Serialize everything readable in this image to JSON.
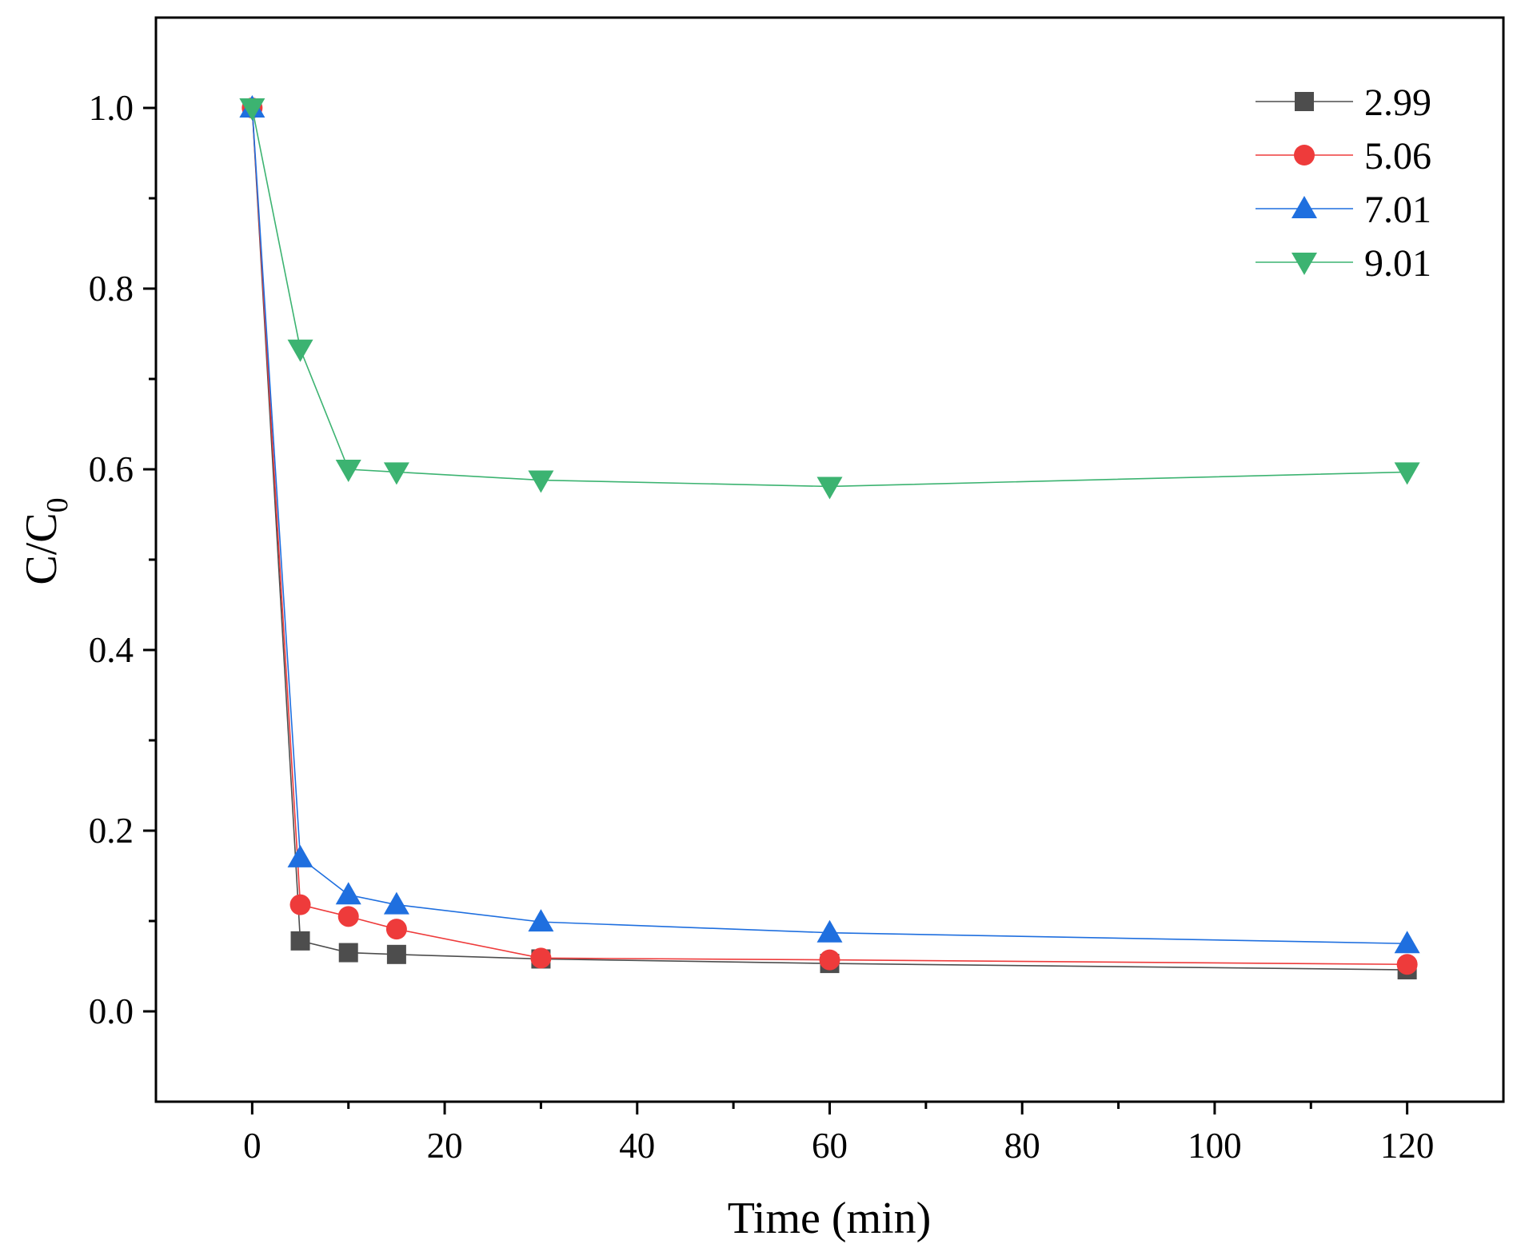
{
  "chart_data": {
    "type": "line",
    "title": "",
    "xlabel": "Time (min)",
    "ylabel": {
      "main": "C/C",
      "sub": "0"
    },
    "xlim": [
      -10,
      130
    ],
    "ylim": [
      -0.1,
      1.1
    ],
    "x_ticks": [
      0,
      20,
      40,
      60,
      80,
      100,
      120
    ],
    "x_tick_labels": [
      "0",
      "20",
      "40",
      "60",
      "80",
      "100",
      "120"
    ],
    "y_ticks": [
      0.0,
      0.2,
      0.4,
      0.6,
      0.8,
      1.0
    ],
    "y_tick_labels": [
      "0.0",
      "0.2",
      "0.4",
      "0.6",
      "0.8",
      "1.0"
    ],
    "grid": false,
    "legend_position": "top-right",
    "x": [
      0,
      5,
      10,
      15,
      30,
      60,
      120
    ],
    "series": [
      {
        "name": "2.99",
        "color": "#4d4d4d",
        "marker": "square",
        "values": [
          1.0,
          0.078,
          0.065,
          0.063,
          0.058,
          0.053,
          0.046
        ]
      },
      {
        "name": "5.06",
        "color": "#ee3b3b",
        "marker": "circle",
        "values": [
          1.0,
          0.118,
          0.105,
          0.091,
          0.059,
          0.057,
          0.052
        ]
      },
      {
        "name": "7.01",
        "color": "#1f6fdf",
        "marker": "triangle-up",
        "values": [
          1.0,
          0.17,
          0.129,
          0.118,
          0.099,
          0.087,
          0.075
        ]
      },
      {
        "name": "9.01",
        "color": "#3cb371",
        "marker": "triangle-down",
        "values": [
          1.0,
          0.733,
          0.6,
          0.597,
          0.588,
          0.581,
          0.597
        ]
      }
    ]
  }
}
